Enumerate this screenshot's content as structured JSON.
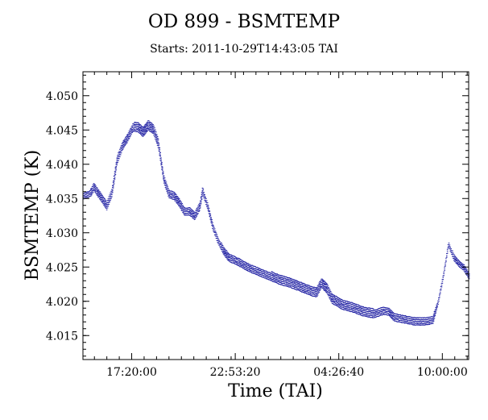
{
  "chart_data": {
    "type": "scatter",
    "title": "OD 899 - BSMTEMP",
    "subtitle": "Starts: 2011-10-29T14:43:05 TAI",
    "xlabel": "Time (TAI)",
    "ylabel": "BSMTEMP (K)",
    "x_unit": "seconds since start",
    "xlim": [
      0,
      74500
    ],
    "ylim": [
      4.0115,
      4.0535
    ],
    "x_ticks": [
      {
        "value": 9415,
        "label": "17:20:00"
      },
      {
        "value": 29415,
        "label": "22:53:20"
      },
      {
        "value": 49415,
        "label": "04:26:40"
      },
      {
        "value": 69415,
        "label": "10:00:00"
      }
    ],
    "y_ticks": [
      "4.015",
      "4.020",
      "4.025",
      "4.030",
      "4.035",
      "4.040",
      "4.045",
      "4.050"
    ],
    "grid": false,
    "marker_color": "#1a1aa0",
    "series": [
      {
        "center": [
          [
            0,
            4.0355
          ],
          [
            1500,
            4.036
          ],
          [
            2000,
            4.0368
          ],
          [
            2500,
            4.0362
          ],
          [
            3500,
            4.0352
          ],
          [
            4500,
            4.034
          ],
          [
            5500,
            4.036
          ],
          [
            6500,
            4.0408
          ],
          [
            7500,
            4.0428
          ],
          [
            8500,
            4.044
          ],
          [
            9500,
            4.0455
          ],
          [
            10500,
            4.0455
          ],
          [
            11500,
            4.0448
          ],
          [
            12500,
            4.0458
          ],
          [
            13500,
            4.0452
          ],
          [
            14500,
            4.043
          ],
          [
            15500,
            4.038
          ],
          [
            16500,
            4.0358
          ],
          [
            17500,
            4.0355
          ],
          [
            18500,
            4.0345
          ],
          [
            19500,
            4.0332
          ],
          [
            20500,
            4.0332
          ],
          [
            21500,
            4.0325
          ],
          [
            22500,
            4.034
          ],
          [
            23000,
            4.0362
          ],
          [
            24000,
            4.034
          ],
          [
            25000,
            4.031
          ],
          [
            26000,
            4.029
          ],
          [
            27000,
            4.0275
          ],
          [
            28000,
            4.0265
          ],
          [
            30000,
            4.0258
          ],
          [
            32000,
            4.025
          ],
          [
            34000,
            4.0244
          ],
          [
            36000,
            4.0238
          ],
          [
            38000,
            4.0232
          ],
          [
            40000,
            4.0228
          ],
          [
            42000,
            4.0222
          ],
          [
            44000,
            4.0216
          ],
          [
            45000,
            4.0214
          ],
          [
            46000,
            4.0228
          ],
          [
            47000,
            4.022
          ],
          [
            48000,
            4.0205
          ],
          [
            50000,
            4.0196
          ],
          [
            52000,
            4.0192
          ],
          [
            54000,
            4.0186
          ],
          [
            56000,
            4.0183
          ],
          [
            58000,
            4.0188
          ],
          [
            59000,
            4.0186
          ],
          [
            60000,
            4.0178
          ],
          [
            62000,
            4.0175
          ],
          [
            64000,
            4.0172
          ],
          [
            66000,
            4.0172
          ],
          [
            67500,
            4.0174
          ],
          [
            68500,
            4.02
          ],
          [
            69500,
            4.0238
          ],
          [
            70500,
            4.0285
          ],
          [
            71500,
            4.0265
          ],
          [
            72500,
            4.0256
          ],
          [
            73500,
            4.025
          ],
          [
            74500,
            4.0238
          ]
        ],
        "spread": [
          [
            0,
            0.001
          ],
          [
            13000,
            0.0014
          ],
          [
            16000,
            0.0012
          ],
          [
            25000,
            0.001
          ],
          [
            40000,
            0.0014
          ],
          [
            52000,
            0.0014
          ],
          [
            60000,
            0.0012
          ],
          [
            67500,
            0.0012
          ],
          [
            68500,
            0.0006
          ],
          [
            74500,
            0.001
          ]
        ]
      }
    ]
  }
}
